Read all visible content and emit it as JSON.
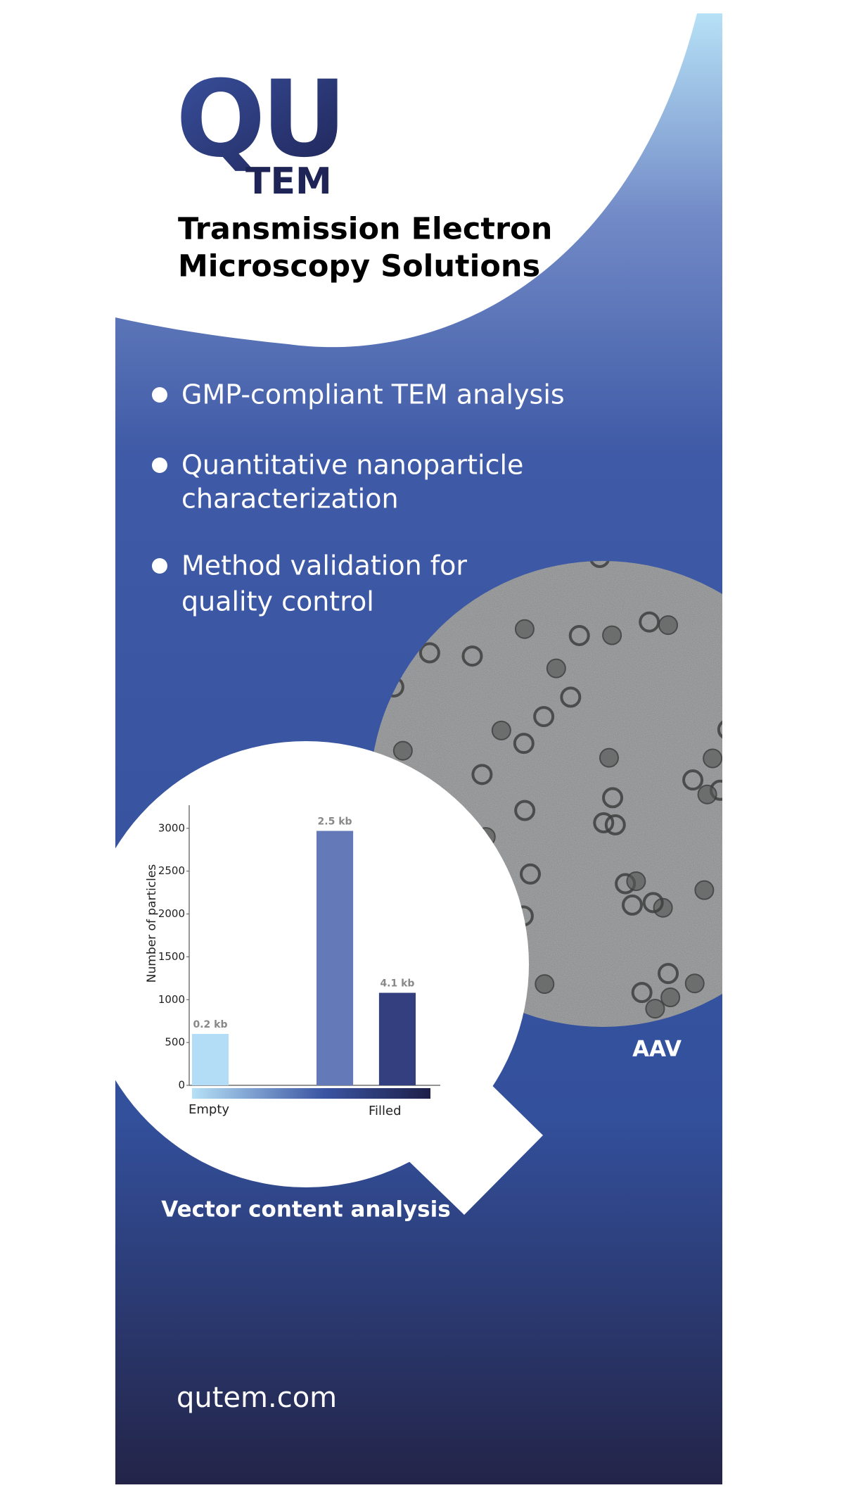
{
  "logo": {
    "mark": "QU",
    "sub": "TEM"
  },
  "headline": [
    "Transmission Electron",
    "Microscopy Solutions"
  ],
  "bullets": [
    [
      "GMP-compliant TEM analysis"
    ],
    [
      "Quantitative nanoparticle",
      "characterization"
    ],
    [
      "Method validation for",
      "quality control"
    ]
  ],
  "image_label": "AAV",
  "chart_data": {
    "type": "bar",
    "ylabel": "Number of particles",
    "categories": [
      "0.2 kb",
      "2.5 kb",
      "4.1 kb"
    ],
    "values": [
      600,
      2970,
      1080
    ],
    "colors": [
      "#b3ddf6",
      "#6479b7",
      "#333f7e"
    ],
    "ylim": [
      0,
      3270
    ],
    "yticks": [
      0,
      500,
      1000,
      1500,
      2000,
      2500,
      3000
    ],
    "scale_labels": [
      "Empty",
      "Filled"
    ]
  },
  "caption": "Vector content analysis",
  "website": "qutem.com"
}
